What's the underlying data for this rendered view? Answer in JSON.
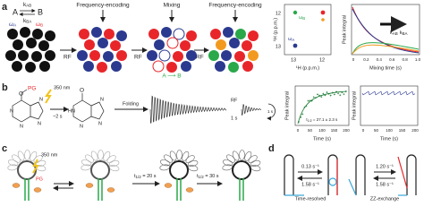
{
  "a": {
    "label": "a",
    "state_a": "A",
    "state_b": "B",
    "k_ab": {
      "symbol": "k",
      "sub": "AB"
    },
    "k_ba": {
      "symbol": "k",
      "sub": "BA"
    },
    "omega_a": {
      "symbol": "ω",
      "sub": "A"
    },
    "omega_b": {
      "symbol": "ω",
      "sub": "B"
    },
    "rf": [
      "RF",
      "RF",
      "RF"
    ],
    "steps": [
      "Frequency-encoding",
      "Mixing",
      "Frequency-encoding"
    ],
    "transfer": "A ⟶ B",
    "spectrum": {
      "y_label": "¹H (p.p.m.)",
      "x_label": "¹H (p.p.m.)",
      "x_ticks": [
        "13",
        "12"
      ],
      "y_ticks": [
        "12",
        "13"
      ]
    },
    "decay": {
      "y_label": "Peak integral",
      "x_label": "Mixing time (s)",
      "x_ticks": [
        "0",
        "0.2",
        "0.4",
        "0.6",
        "0.8",
        "1.0"
      ],
      "legend": [
        {
          "symbol": "k",
          "sub": "AB"
        },
        {
          "symbol": "k",
          "sub": "BA"
        }
      ]
    }
  },
  "b": {
    "label": "b",
    "protecting_group": "PG",
    "wavelength": "350 nm",
    "delay": "~2 s",
    "folding": "Folding",
    "rf": "RF",
    "interval": "1 s",
    "loop_label": "1 s",
    "molecule_1": [
      "O",
      "N",
      "N",
      "N",
      "N"
    ],
    "molecule_2": [
      "O",
      "HN",
      "N",
      "N",
      "N"
    ],
    "chart_1": {
      "y_label": "Peak integral",
      "x_label": "Time (s)",
      "x_ticks": [
        "0",
        "50",
        "100",
        "150",
        "200"
      ],
      "fit": {
        "symbol": "τ",
        "sub": "1/2",
        "text": " = 27.1 ± 2.3 s"
      }
    },
    "chart_2": {
      "y_label": "Peak integral",
      "x_label": "Time (s)",
      "x_ticks": [
        "0",
        "50",
        "100",
        "150",
        "200"
      ]
    }
  },
  "c": {
    "label": "c",
    "wavelength": "350 nm",
    "protecting_group": "PG",
    "half_life_1": {
      "symbol": "t",
      "sub": "1/2",
      "text": " = 20 s"
    },
    "half_life_2": {
      "symbol": "t",
      "sub": "1/2",
      "text": " = 30 s"
    }
  },
  "d": {
    "label": "d",
    "time_resolved": {
      "rates": [
        "0.13 s⁻¹",
        "1.58 s⁻¹"
      ],
      "method": "Time-resolved"
    },
    "zz_exchange": {
      "rates": [
        "1.20 s⁻¹",
        "1.58 s⁻¹"
      ],
      "method": "ZZ-exchange"
    }
  }
}
